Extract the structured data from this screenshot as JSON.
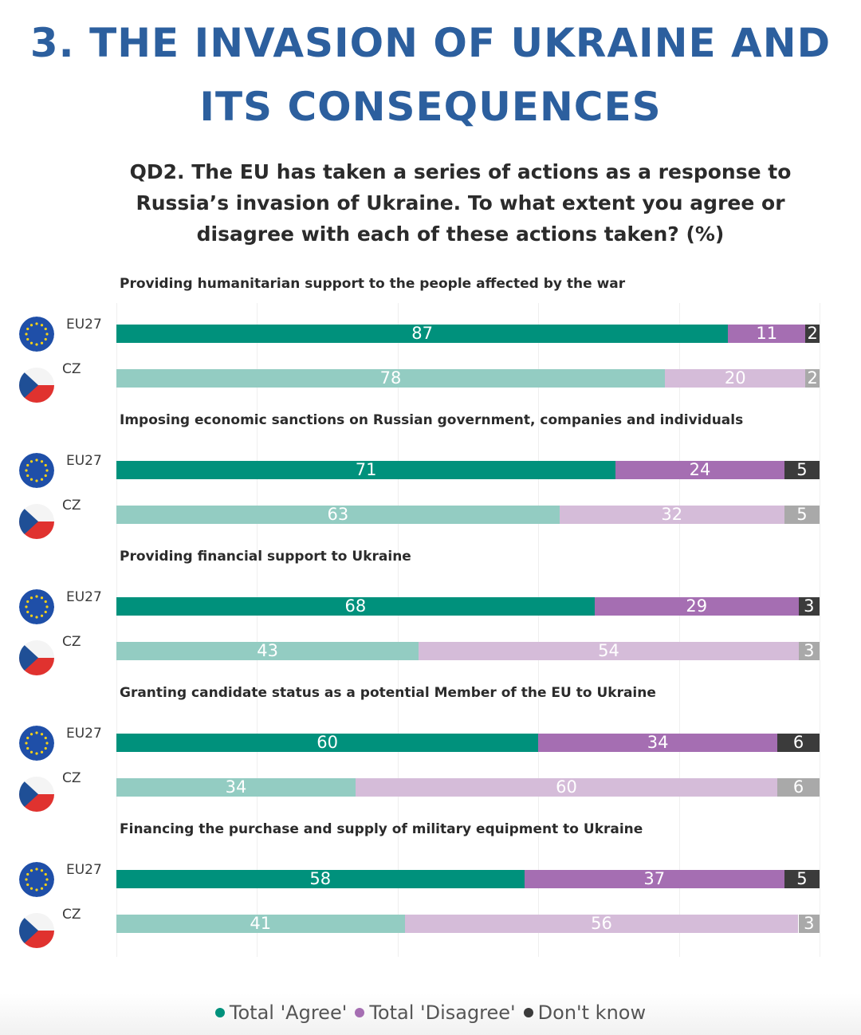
{
  "title_line1": "3. THE INVASION OF UKRAINE AND",
  "title_line2": "ITS CONSEQUENCES",
  "chart_data": {
    "type": "bar",
    "subtype": "stacked-horizontal-100",
    "title": "QD2. The EU has taken a series of actions as a response to Russia’s invasion of Ukraine. To what extent you agree or disagree with each of these actions taken? (%)",
    "title_lines": [
      "QD2. The EU has taken a series of actions as a response to",
      "Russia’s invasion of Ukraine. To what extent you agree or",
      "disagree with each of these actions taken? (%)"
    ],
    "series_names": [
      "Total 'Agree'",
      "Total 'Disagree'",
      "Don't know"
    ],
    "colors": {
      "eu27": [
        "#00917c",
        "#a56eb2",
        "#3b3b3b"
      ],
      "cz": [
        "#93ccc2",
        "#d5bcd9",
        "#a9a9a9"
      ]
    },
    "xlim": [
      0,
      100
    ],
    "groups": [
      {
        "label": "Providing humanitarian support to the people affected by the war",
        "rows": [
          {
            "region": "EU27",
            "flag": "eu-flag-icon",
            "values": [
              87,
              11,
              2
            ]
          },
          {
            "region": "CZ",
            "flag": "cz-flag-icon",
            "values": [
              78,
              20,
              2
            ]
          }
        ]
      },
      {
        "label": "Imposing economic sanctions on Russian government, companies and individuals",
        "rows": [
          {
            "region": "EU27",
            "flag": "eu-flag-icon",
            "values": [
              71,
              24,
              5
            ]
          },
          {
            "region": "CZ",
            "flag": "cz-flag-icon",
            "values": [
              63,
              32,
              5
            ]
          }
        ]
      },
      {
        "label": "Providing financial support to Ukraine",
        "rows": [
          {
            "region": "EU27",
            "flag": "eu-flag-icon",
            "values": [
              68,
              29,
              3
            ]
          },
          {
            "region": "CZ",
            "flag": "cz-flag-icon",
            "values": [
              43,
              54,
              3
            ]
          }
        ]
      },
      {
        "label": "Granting candidate status as a potential Member of the EU to Ukraine",
        "rows": [
          {
            "region": "EU27",
            "flag": "eu-flag-icon",
            "values": [
              60,
              34,
              6
            ]
          },
          {
            "region": "CZ",
            "flag": "cz-flag-icon",
            "values": [
              34,
              60,
              6
            ]
          }
        ]
      },
      {
        "label": "Financing the purchase and supply of military equipment to Ukraine",
        "rows": [
          {
            "region": "EU27",
            "flag": "eu-flag-icon",
            "values": [
              58,
              37,
              5
            ]
          },
          {
            "region": "CZ",
            "flag": "cz-flag-icon",
            "values": [
              41,
              56,
              3
            ]
          }
        ]
      }
    ],
    "legend": [
      {
        "label": "Total 'Agree'",
        "color": "#00917c"
      },
      {
        "label": "Total 'Disagree'",
        "color": "#a56eb2"
      },
      {
        "label": "Don't know",
        "color": "#3b3b3b"
      }
    ]
  }
}
